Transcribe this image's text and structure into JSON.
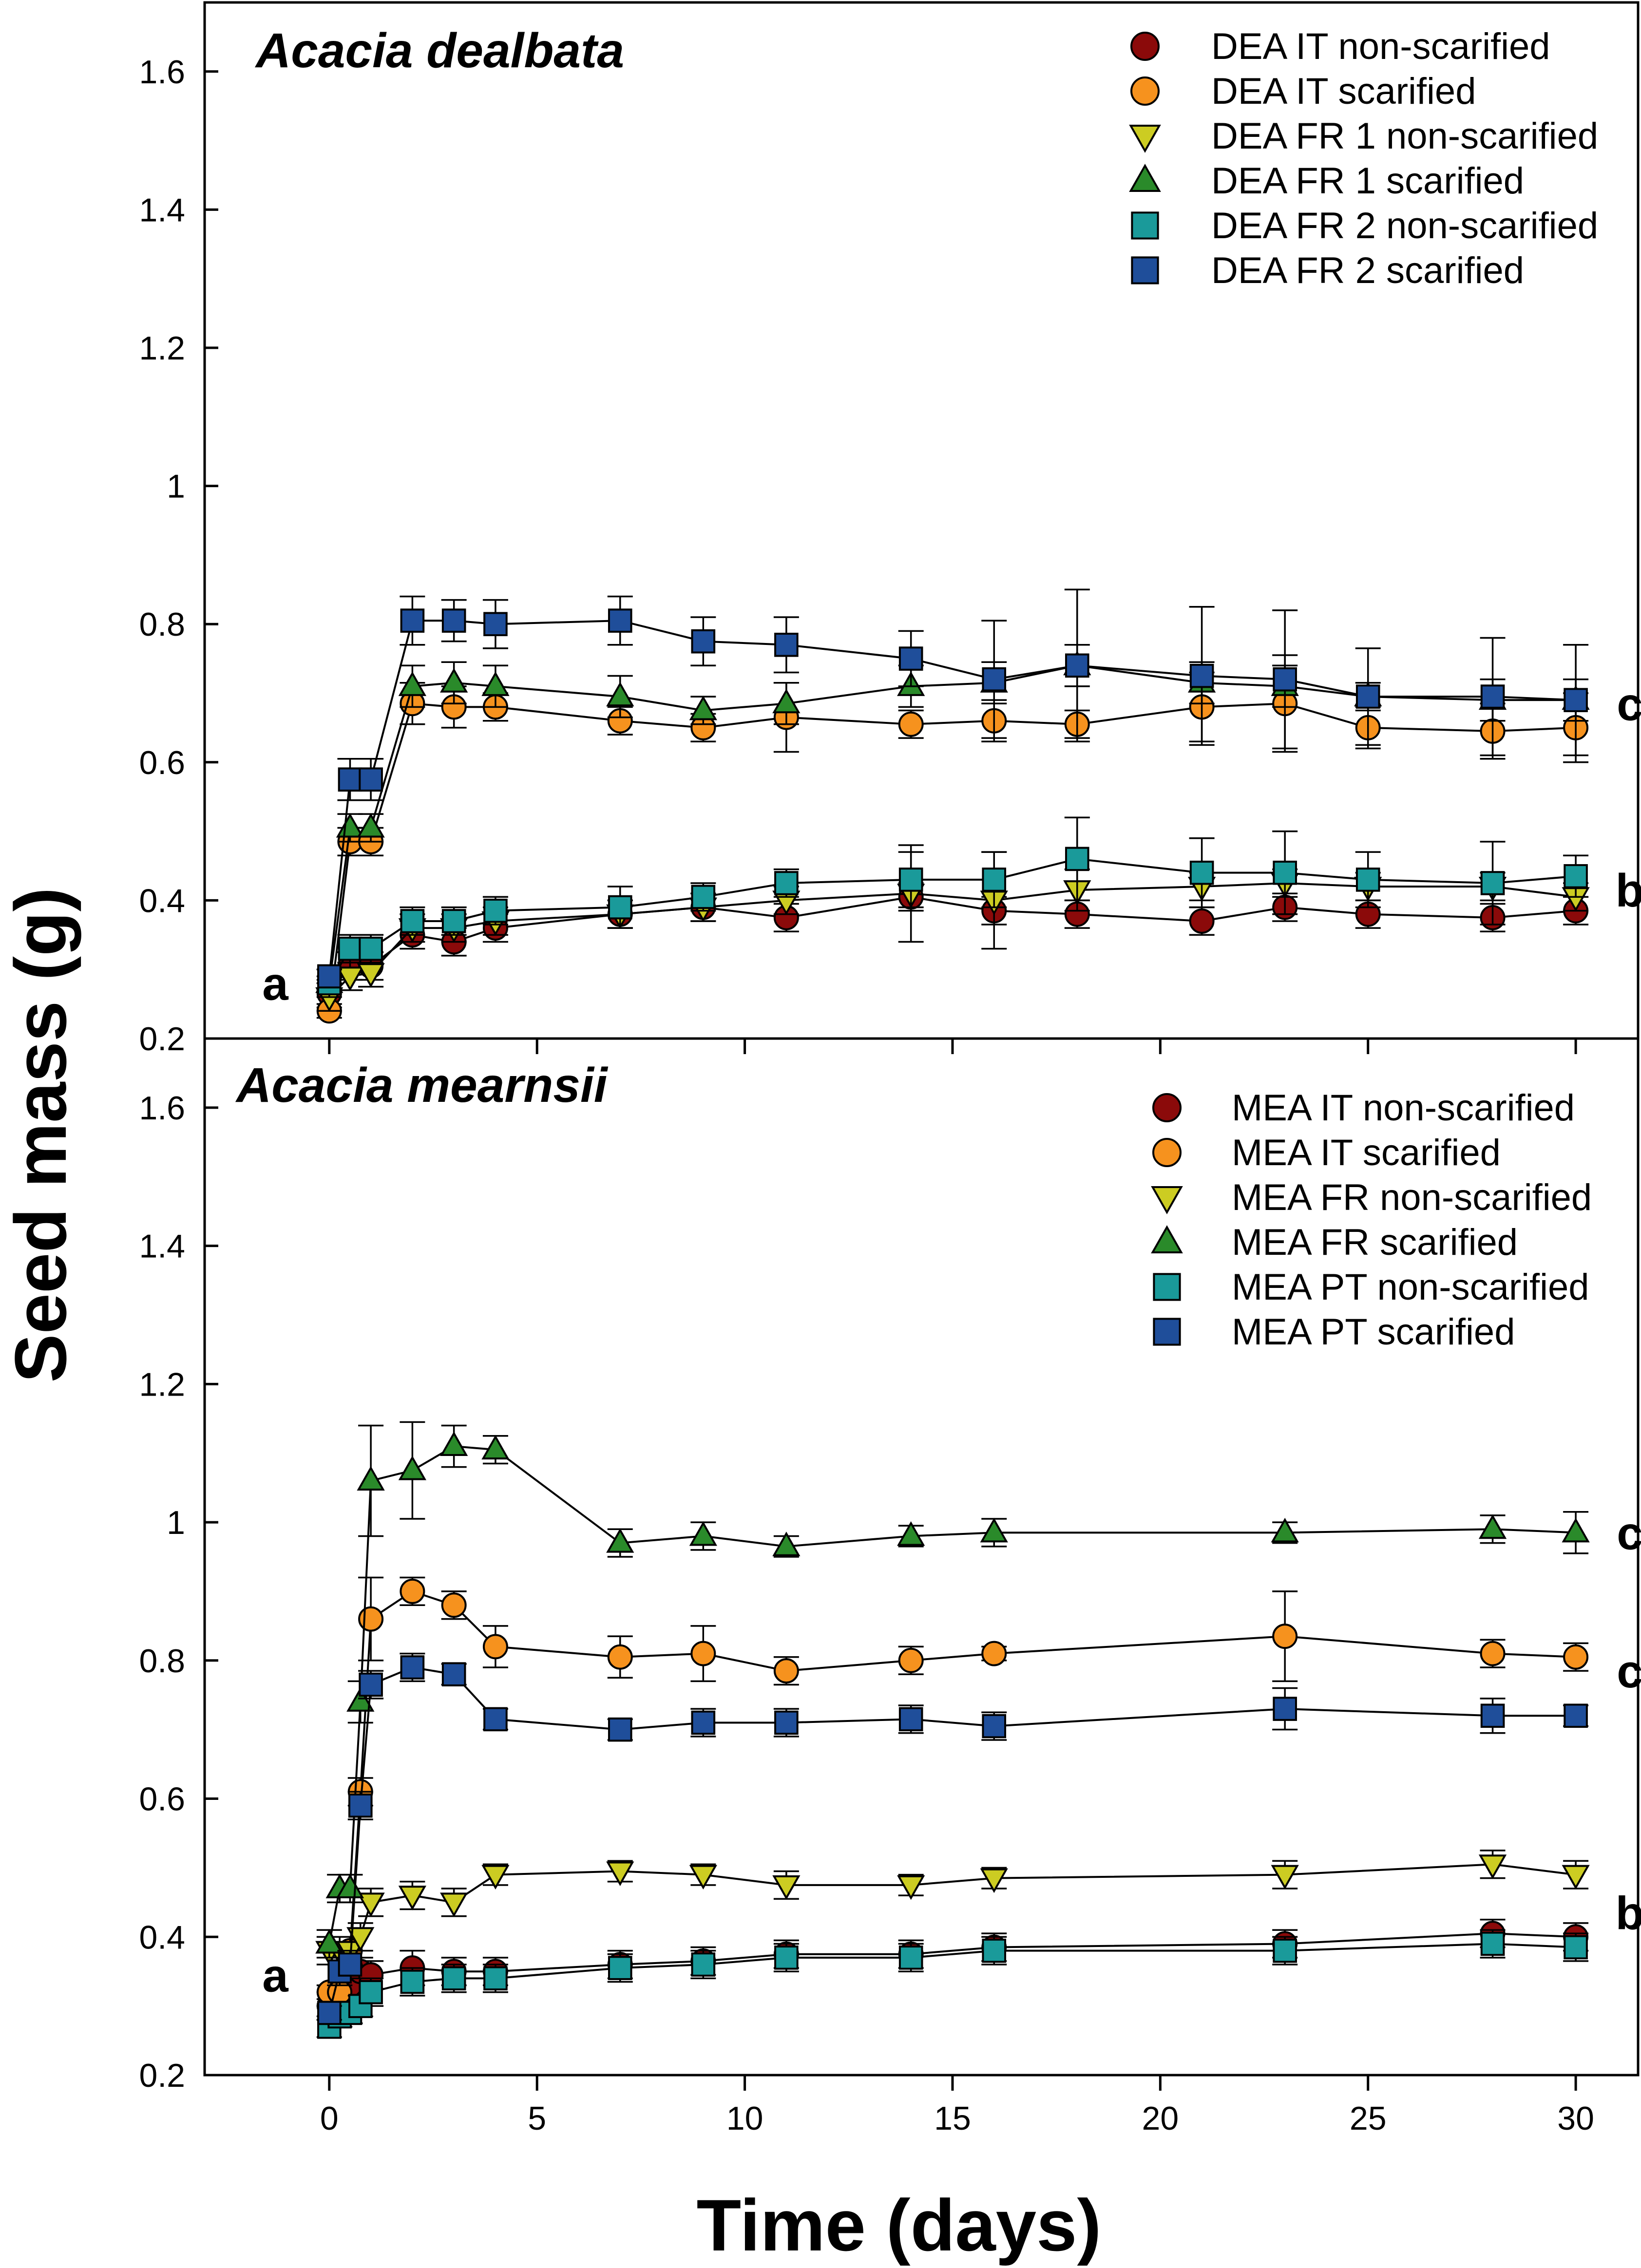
{
  "figure": {
    "ylabel": "Seed mass (g)",
    "xlabel": "Time (days)"
  },
  "chart_data": [
    {
      "type": "scatter",
      "title": "Acacia dealbata",
      "ylabel": "Seed mass (g)",
      "xlabel": "Time (days)",
      "xlim": [
        -3,
        31.5
      ],
      "ylim": [
        0.2,
        1.7
      ],
      "xticks": [
        0,
        5,
        10,
        15,
        20,
        25,
        30
      ],
      "yticks": [
        0.2,
        0.4,
        0.6,
        0.8,
        1.0,
        1.2,
        1.4,
        1.6
      ],
      "ytick_labels": [
        "0.2",
        "0.4",
        "0.6",
        "0.8",
        "1",
        "1.2",
        "1.4",
        "1.6"
      ],
      "xtick_labels": [
        "0",
        "5",
        "10",
        "15",
        "20",
        "25",
        "30"
      ],
      "legend_position": "top-right",
      "annotations": [
        {
          "text": "a",
          "x": -1.3,
          "y": 0.28
        },
        {
          "text": "c",
          "x": 31.3,
          "y": 0.685
        },
        {
          "text": "b",
          "x": 31.3,
          "y": 0.415
        }
      ],
      "series": [
        {
          "name": "DEA IT non-scarified",
          "marker": "circle",
          "color": "#8b0a0a",
          "x": [
            0,
            0.5,
            1,
            2,
            3,
            4,
            7,
            9,
            11,
            14,
            16,
            18,
            21,
            23,
            25,
            28,
            30
          ],
          "y": [
            0.265,
            0.305,
            0.305,
            0.35,
            0.34,
            0.36,
            0.38,
            0.39,
            0.375,
            0.405,
            0.385,
            0.38,
            0.37,
            0.39,
            0.38,
            0.375,
            0.385
          ],
          "err": [
            0.02,
            0.02,
            0.02,
            0.02,
            0.02,
            0.02,
            0.02,
            0.02,
            0.02,
            0.02,
            0.02,
            0.02,
            0.02,
            0.02,
            0.02,
            0.02,
            0.02
          ]
        },
        {
          "name": "DEA IT scarified",
          "marker": "circle",
          "color": "#f6921e",
          "x": [
            0,
            0.5,
            1,
            2,
            3,
            4,
            7,
            9,
            11,
            14,
            16,
            18,
            21,
            23,
            25,
            28,
            30
          ],
          "y": [
            0.24,
            0.485,
            0.485,
            0.685,
            0.68,
            0.68,
            0.66,
            0.65,
            0.665,
            0.655,
            0.66,
            0.655,
            0.68,
            0.685,
            0.65,
            0.645,
            0.65
          ],
          "err": [
            0.01,
            0.02,
            0.02,
            0.03,
            0.03,
            0.02,
            0.02,
            0.02,
            0.05,
            0.02,
            0.03,
            0.02,
            0.05,
            0.07,
            0.03,
            0.04,
            0.05
          ]
        },
        {
          "name": "DEA FR 1 non-scarified",
          "marker": "triangle-down",
          "color": "#cccc22",
          "x": [
            0,
            0.5,
            1,
            2,
            3,
            4,
            7,
            9,
            11,
            14,
            16,
            18,
            21,
            23,
            25,
            28,
            30
          ],
          "y": [
            0.26,
            0.29,
            0.295,
            0.36,
            0.36,
            0.37,
            0.38,
            0.39,
            0.4,
            0.41,
            0.4,
            0.415,
            0.42,
            0.425,
            0.42,
            0.42,
            0.405
          ],
          "err": [
            0.02,
            0.02,
            0.02,
            0.02,
            0.02,
            0.02,
            0.02,
            0.02,
            0.02,
            0.07,
            0.07,
            0.03,
            0.02,
            0.02,
            0.02,
            0.02,
            0.02
          ]
        },
        {
          "name": "DEA FR 1 scarified",
          "marker": "triangle-up",
          "color": "#2a8a2a",
          "x": [
            0,
            0.5,
            1,
            2,
            3,
            4,
            7,
            9,
            11,
            14,
            16,
            18,
            21,
            23,
            25,
            28,
            30
          ],
          "y": [
            0.28,
            0.505,
            0.505,
            0.71,
            0.715,
            0.71,
            0.695,
            0.675,
            0.685,
            0.71,
            0.715,
            0.74,
            0.715,
            0.71,
            0.695,
            0.69,
            0.69
          ],
          "err": [
            0.01,
            0.02,
            0.02,
            0.03,
            0.03,
            0.03,
            0.03,
            0.02,
            0.03,
            0.03,
            0.03,
            0.03,
            0.03,
            0.03,
            0.02,
            0.03,
            0.03
          ]
        },
        {
          "name": "DEA FR 2 non-scarified",
          "marker": "square",
          "color": "#1a9a9a",
          "x": [
            0,
            0.5,
            1,
            2,
            3,
            4,
            7,
            9,
            11,
            14,
            16,
            18,
            21,
            23,
            25,
            28,
            30
          ],
          "y": [
            0.28,
            0.33,
            0.33,
            0.37,
            0.37,
            0.385,
            0.39,
            0.405,
            0.425,
            0.43,
            0.43,
            0.46,
            0.44,
            0.44,
            0.43,
            0.425,
            0.435
          ],
          "err": [
            0.02,
            0.02,
            0.02,
            0.02,
            0.02,
            0.02,
            0.03,
            0.02,
            0.02,
            0.04,
            0.04,
            0.06,
            0.05,
            0.06,
            0.04,
            0.06,
            0.03
          ]
        },
        {
          "name": "DEA FR 2 scarified",
          "marker": "square",
          "color": "#1f4e9a",
          "x": [
            0,
            0.5,
            1,
            2,
            3,
            4,
            7,
            9,
            11,
            14,
            16,
            18,
            21,
            23,
            25,
            28,
            30
          ],
          "y": [
            0.29,
            0.575,
            0.575,
            0.805,
            0.805,
            0.8,
            0.805,
            0.775,
            0.77,
            0.75,
            0.72,
            0.74,
            0.725,
            0.72,
            0.695,
            0.695,
            0.69
          ],
          "err": [
            0.01,
            0.03,
            0.03,
            0.035,
            0.03,
            0.035,
            0.035,
            0.035,
            0.04,
            0.04,
            0.085,
            0.11,
            0.1,
            0.1,
            0.07,
            0.085,
            0.08
          ]
        }
      ]
    },
    {
      "type": "scatter",
      "title": "Acacia mearnsii",
      "ylabel": "Seed mass (g)",
      "xlabel": "Time (days)",
      "xlim": [
        -3,
        31.5
      ],
      "ylim": [
        0.2,
        1.7
      ],
      "xticks": [
        0,
        5,
        10,
        15,
        20,
        25,
        30
      ],
      "yticks": [
        0.2,
        0.4,
        0.6,
        0.8,
        1.0,
        1.2,
        1.4,
        1.6
      ],
      "ytick_labels": [
        "0.2",
        "0.4",
        "0.6",
        "0.8",
        "1",
        "1.2",
        "1.4",
        "1.6"
      ],
      "xtick_labels": [
        "0",
        "5",
        "10",
        "15",
        "20",
        "25",
        "30"
      ],
      "legend_position": "top-right",
      "annotations": [
        {
          "text": "a",
          "x": -1.3,
          "y": 0.345
        },
        {
          "text": "c",
          "x": 31.3,
          "y": 0.985
        },
        {
          "text": "c",
          "x": 31.3,
          "y": 0.785
        },
        {
          "text": "b",
          "x": 31.3,
          "y": 0.435
        }
      ],
      "series": [
        {
          "name": "MEA IT non-scarified",
          "marker": "circle",
          "color": "#8b0a0a",
          "x": [
            0,
            0.25,
            0.5,
            0.75,
            1,
            2,
            3,
            4,
            7,
            9,
            11,
            14,
            16,
            23,
            28,
            30
          ],
          "y": [
            0.3,
            0.3,
            0.33,
            0.35,
            0.345,
            0.355,
            0.35,
            0.35,
            0.36,
            0.365,
            0.375,
            0.375,
            0.385,
            0.39,
            0.405,
            0.4
          ],
          "err": [
            0.02,
            0.02,
            0.02,
            0.02,
            0.02,
            0.025,
            0.02,
            0.02,
            0.02,
            0.02,
            0.02,
            0.02,
            0.02,
            0.02,
            0.02,
            0.02
          ]
        },
        {
          "name": "MEA IT scarified",
          "marker": "circle",
          "color": "#f6921e",
          "x": [
            0,
            0.25,
            0.5,
            0.75,
            1,
            2,
            3,
            4,
            7,
            9,
            11,
            14,
            16,
            23,
            28,
            30
          ],
          "y": [
            0.32,
            0.32,
            0.38,
            0.61,
            0.86,
            0.9,
            0.88,
            0.82,
            0.805,
            0.81,
            0.785,
            0.8,
            0.81,
            0.835,
            0.81,
            0.805
          ],
          "err": [
            0.01,
            0.01,
            0.02,
            0.02,
            0.06,
            0.02,
            0.02,
            0.03,
            0.03,
            0.04,
            0.02,
            0.02,
            0.01,
            0.065,
            0.02,
            0.02
          ]
        },
        {
          "name": "MEA FR non-scarified",
          "marker": "triangle-down",
          "color": "#cccc22",
          "x": [
            0,
            0.25,
            0.5,
            0.75,
            1,
            2,
            3,
            4,
            7,
            9,
            11,
            14,
            16,
            23,
            28,
            30
          ],
          "y": [
            0.38,
            0.38,
            0.38,
            0.4,
            0.45,
            0.46,
            0.45,
            0.49,
            0.495,
            0.49,
            0.475,
            0.475,
            0.485,
            0.49,
            0.505,
            0.49
          ],
          "err": [
            0.02,
            0.02,
            0.02,
            0.02,
            0.02,
            0.02,
            0.02,
            0.015,
            0.015,
            0.015,
            0.02,
            0.015,
            0.015,
            0.02,
            0.02,
            0.02
          ]
        },
        {
          "name": "MEA FR scarified",
          "marker": "triangle-up",
          "color": "#2a8a2a",
          "x": [
            0,
            0.25,
            0.5,
            0.75,
            1,
            2,
            3,
            4,
            7,
            9,
            11,
            14,
            16,
            23,
            28,
            30
          ],
          "y": [
            0.39,
            0.47,
            0.47,
            0.74,
            1.06,
            1.075,
            1.11,
            1.105,
            0.97,
            0.98,
            0.965,
            0.98,
            0.985,
            0.985,
            0.99,
            0.985
          ],
          "err": [
            0.02,
            0.02,
            0.02,
            0.03,
            0.08,
            0.07,
            0.03,
            0.02,
            0.02,
            0.02,
            0.015,
            0.015,
            0.02,
            0.015,
            0.02,
            0.03
          ]
        },
        {
          "name": "MEA PT non-scarified",
          "marker": "square",
          "color": "#1a9a9a",
          "x": [
            0,
            0.25,
            0.5,
            0.75,
            1,
            2,
            3,
            4,
            7,
            9,
            11,
            14,
            16,
            23,
            28,
            30
          ],
          "y": [
            0.27,
            0.285,
            0.29,
            0.3,
            0.32,
            0.335,
            0.34,
            0.34,
            0.355,
            0.36,
            0.37,
            0.37,
            0.38,
            0.38,
            0.39,
            0.385
          ],
          "err": [
            0.015,
            0.015,
            0.015,
            0.015,
            0.02,
            0.02,
            0.02,
            0.02,
            0.02,
            0.02,
            0.02,
            0.02,
            0.02,
            0.02,
            0.02,
            0.02
          ]
        },
        {
          "name": "MEA PT scarified",
          "marker": "square",
          "color": "#1f4e9a",
          "x": [
            0,
            0.25,
            0.5,
            0.75,
            1,
            2,
            3,
            4,
            7,
            9,
            11,
            14,
            16,
            23,
            28,
            30
          ],
          "y": [
            0.29,
            0.35,
            0.36,
            0.59,
            0.765,
            0.79,
            0.78,
            0.715,
            0.7,
            0.71,
            0.71,
            0.715,
            0.705,
            0.73,
            0.72,
            0.72
          ],
          "err": [
            0.01,
            0.02,
            0.02,
            0.02,
            0.02,
            0.02,
            0.015,
            0.015,
            0.015,
            0.02,
            0.02,
            0.02,
            0.02,
            0.03,
            0.025,
            0.015
          ]
        }
      ]
    }
  ]
}
